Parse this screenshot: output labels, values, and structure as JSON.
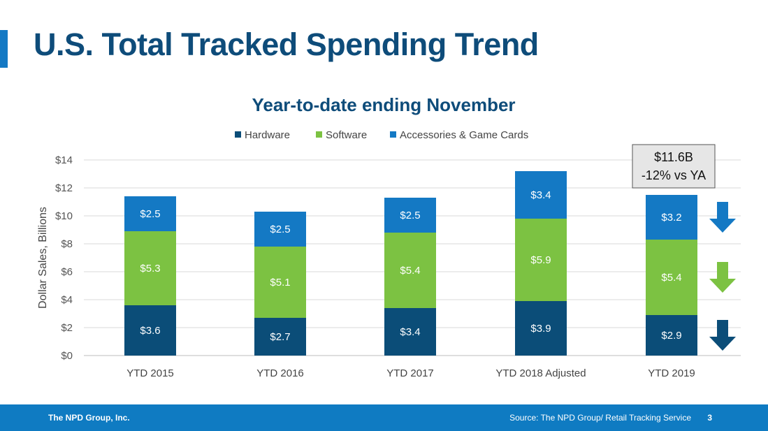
{
  "slide": {
    "title": "U.S. Total Tracked Spending Trend",
    "footer_company": "The NPD Group, Inc.",
    "footer_source": "Source: The NPD Group/ Retail Tracking Service",
    "page_number": "3"
  },
  "colors": {
    "title": "#0e4c7a",
    "hardware": "#0b4d78",
    "software": "#7cc242",
    "accessories": "#1479c4",
    "footer": "#0f7bc2"
  },
  "chart_data": {
    "type": "bar",
    "stacked": true,
    "title": "Year-to-date ending November",
    "ylabel": "Dollar Sales, Billions",
    "xlabel": "",
    "ylim": [
      0,
      14
    ],
    "yticks": [
      0,
      2,
      4,
      6,
      8,
      10,
      12,
      14
    ],
    "ytick_labels": [
      "$0",
      "$2",
      "$4",
      "$6",
      "$8",
      "$10",
      "$12",
      "$14"
    ],
    "grid": true,
    "legend_position": "top",
    "categories": [
      "YTD 2015",
      "YTD 2016",
      "YTD 2017",
      "YTD 2018 Adjusted",
      "YTD 2019"
    ],
    "series": [
      {
        "name": "Hardware",
        "color": "#0b4d78",
        "values": [
          3.6,
          2.7,
          3.4,
          3.9,
          2.9
        ],
        "labels": [
          "$3.6",
          "$2.7",
          "$3.4",
          "$3.9",
          "$2.9"
        ]
      },
      {
        "name": "Software",
        "color": "#7cc242",
        "values": [
          5.3,
          5.1,
          5.4,
          5.9,
          5.4
        ],
        "labels": [
          "$5.3",
          "$5.1",
          "$5.4",
          "$5.9",
          "$5.4"
        ]
      },
      {
        "name": "Accessories & Game Cards",
        "color": "#1479c4",
        "values": [
          2.5,
          2.5,
          2.5,
          3.4,
          3.2
        ],
        "labels": [
          "$2.5",
          "$2.5",
          "$2.5",
          "$3.4",
          "$3.2"
        ]
      }
    ],
    "annotation": {
      "category": "YTD 2019",
      "lines": [
        "$11.6B",
        "-12% vs YA"
      ]
    },
    "trend_arrows": [
      {
        "series": "Accessories & Game Cards",
        "direction": "down",
        "color": "#1479c4",
        "icon": "down-arrow-icon"
      },
      {
        "series": "Software",
        "direction": "down",
        "color": "#7cc242",
        "icon": "down-arrow-icon"
      },
      {
        "series": "Hardware",
        "direction": "down",
        "color": "#0b4d78",
        "icon": "down-arrow-icon"
      }
    ]
  }
}
